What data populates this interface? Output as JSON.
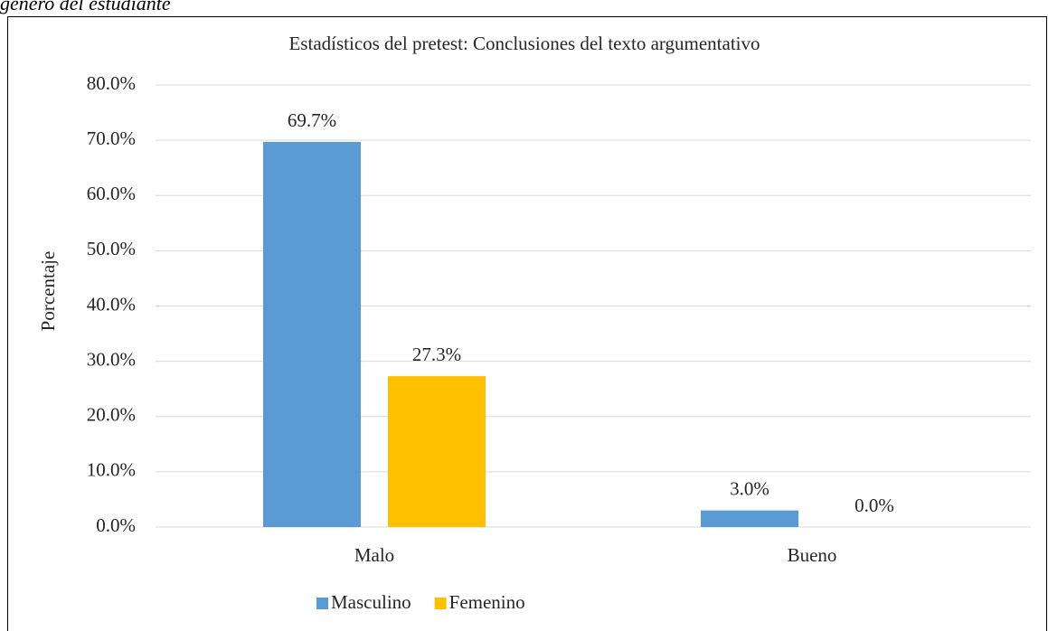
{
  "caption": "género del estudiante",
  "chart_data": {
    "type": "bar",
    "title": "Estadísticos del pretest: Conclusiones del texto argumentativo",
    "y_label": "Porcentaje",
    "categories": [
      "Malo",
      "Bueno"
    ],
    "series": [
      {
        "name": "Masculino",
        "color": "#5b9bd5",
        "values": [
          69.7,
          3.0
        ],
        "value_labels": [
          "69.7%",
          "3.0%"
        ]
      },
      {
        "name": "Femenino",
        "color": "#ffc000",
        "values": [
          27.3,
          0.0
        ],
        "value_labels": [
          "27.3%",
          "0.0%"
        ]
      }
    ],
    "ylim": [
      0,
      80
    ],
    "yticks": [
      {
        "value": 0,
        "label": "0.0%"
      },
      {
        "value": 10,
        "label": "10.0%"
      },
      {
        "value": 20,
        "label": "20.0%"
      },
      {
        "value": 30,
        "label": "30.0%"
      },
      {
        "value": 40,
        "label": "40.0%"
      },
      {
        "value": 50,
        "label": "50.0%"
      },
      {
        "value": 60,
        "label": "60.0%"
      },
      {
        "value": 70,
        "label": "70.0%"
      },
      {
        "value": 80,
        "label": "80.0%"
      }
    ],
    "grid": true,
    "legend": "bottom"
  }
}
